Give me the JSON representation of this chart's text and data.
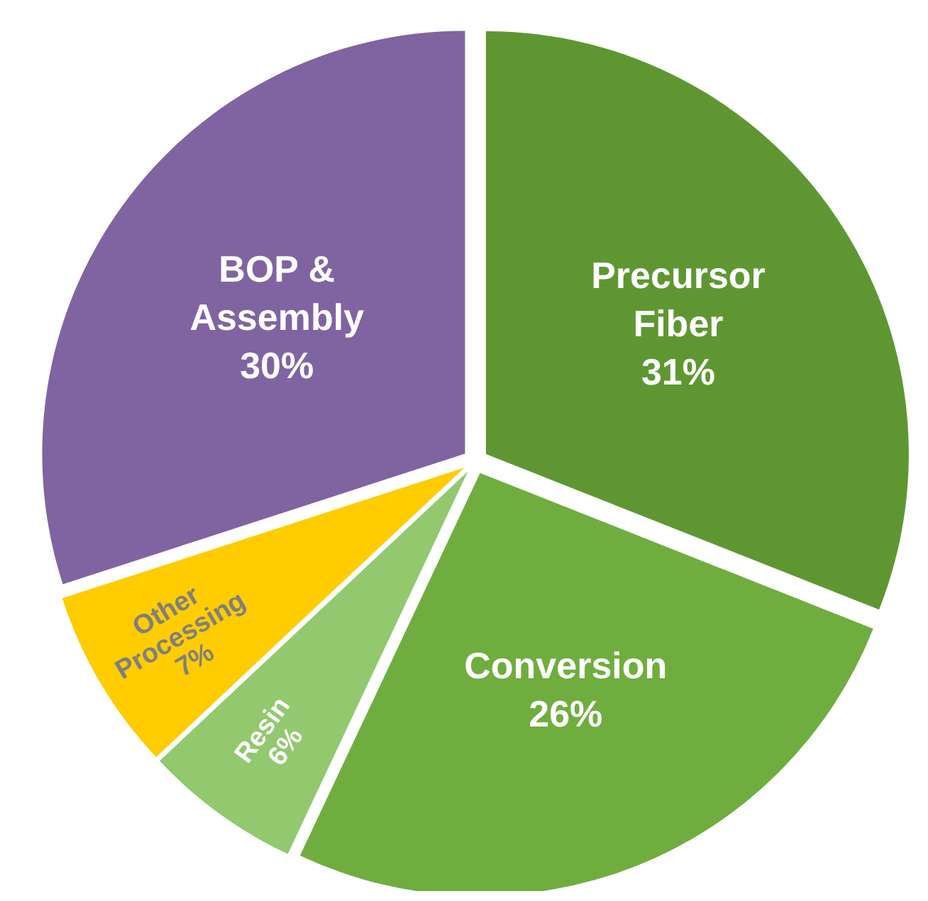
{
  "chart_data": {
    "type": "pie",
    "categories": [
      "Precursor Fiber",
      "Conversion",
      "Resin",
      "Other Processing",
      "BOP & Assembly"
    ],
    "values": [
      31,
      26,
      6,
      7,
      30
    ],
    "colors": [
      "#5e9732",
      "#70ad3f",
      "#92c86e",
      "#ffcc00",
      "#8064a2"
    ],
    "value_labels": [
      "31%",
      "26%",
      "6%",
      "7%",
      "30%"
    ]
  }
}
